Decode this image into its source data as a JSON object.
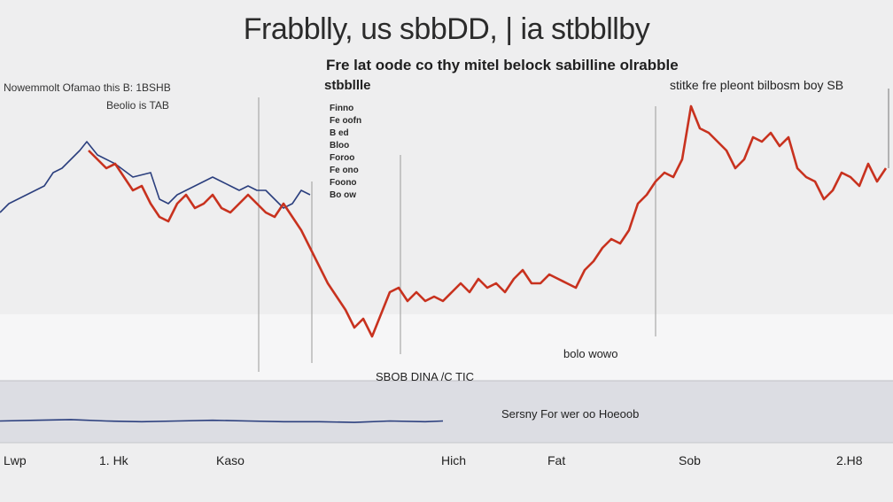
{
  "chart_data": {
    "type": "line",
    "title": "Frabblly, us sbbDD, | ia stbbllby",
    "subtitle": "Fre lat oode co thy mitel belock sabilline olrabble",
    "subtitle_2": "stbbllle",
    "left_caption": "Nowemmolt Ofamao this B: 1BSHB",
    "left_caption_2": "Beolio is TAB",
    "right_caption": "stitke fre pleont bilbosm boy SB",
    "lower_band_label": "bolo wowo",
    "lower_label_1": "SBOB DINA /C TIC",
    "lower_label_2": "Sersny For wer oo Hoeoob",
    "xlabels": [
      "Lwp",
      "1. Hk",
      "Kaso",
      "Hich",
      "Fat",
      "Sob",
      "2.H8"
    ],
    "legend": [
      "Finno",
      "Fe oofn",
      "B ed",
      "Bloo",
      "Foroo",
      "Fe ono",
      "Foono",
      "Bo ow"
    ],
    "series": [
      {
        "color": "#2b3f7e",
        "x": [
          0,
          10,
          20,
          30,
          40,
          50,
          60,
          70,
          80,
          90,
          98,
          110,
          130,
          150,
          170,
          180,
          190,
          200,
          210,
          220,
          230,
          240,
          250,
          260,
          270,
          280,
          290,
          300,
          310,
          320,
          330,
          340,
          350
        ],
        "y": [
          36,
          38,
          39,
          40,
          41,
          42,
          45,
          46,
          48,
          50,
          52,
          49,
          47,
          44,
          45,
          39,
          38,
          40,
          41,
          42,
          43,
          44,
          43,
          42,
          41,
          42,
          41,
          41,
          39,
          37,
          38,
          41,
          40
        ]
      },
      {
        "color": "#c8321f",
        "x": [
          100,
          110,
          120,
          130,
          140,
          150,
          160,
          170,
          180,
          190,
          200,
          210,
          220,
          230,
          240,
          250,
          260,
          270,
          280,
          290,
          300,
          310,
          320,
          330,
          340,
          350,
          360,
          370,
          380,
          390,
          400,
          410,
          420,
          430,
          440,
          450,
          460,
          470,
          480,
          490,
          500,
          510,
          520,
          530,
          540,
          550,
          560,
          570,
          580,
          590,
          600,
          610,
          620,
          630,
          640,
          650,
          660,
          670,
          680,
          690,
          700,
          710,
          720,
          730,
          740,
          750,
          760,
          770,
          780,
          790,
          800,
          810,
          820,
          830,
          840,
          850,
          860,
          870,
          880,
          890,
          900,
          910,
          920,
          930,
          940,
          950,
          960,
          970,
          980,
          990,
          1000
        ],
        "y": [
          50,
          48,
          46,
          47,
          44,
          41,
          42,
          38,
          35,
          34,
          38,
          40,
          37,
          38,
          40,
          37,
          36,
          38,
          40,
          38,
          36,
          35,
          38,
          35,
          32,
          28,
          24,
          20,
          17,
          14,
          10,
          12,
          8,
          13,
          18,
          19,
          16,
          18,
          16,
          17,
          16,
          18,
          20,
          18,
          21,
          19,
          20,
          18,
          21,
          23,
          20,
          20,
          22,
          21,
          20,
          19,
          23,
          25,
          28,
          30,
          29,
          32,
          38,
          40,
          43,
          45,
          44,
          48,
          60,
          55,
          54,
          52,
          50,
          46,
          48,
          53,
          52,
          54,
          51,
          53,
          46,
          44,
          43,
          39,
          41,
          45,
          44,
          42,
          47,
          43,
          46
        ]
      },
      {
        "color": "#2b3f7e",
        "x": [
          0,
          40,
          80,
          120,
          160,
          200,
          240,
          280,
          320,
          360,
          400,
          440,
          480,
          500
        ],
        "y": [
          18,
          19,
          20,
          18,
          17,
          18,
          19,
          18,
          17,
          17,
          16,
          18,
          17,
          18
        ]
      }
    ],
    "xlim": [
      0,
      1008
    ],
    "ylim": [
      0,
      62
    ],
    "grid": false
  }
}
